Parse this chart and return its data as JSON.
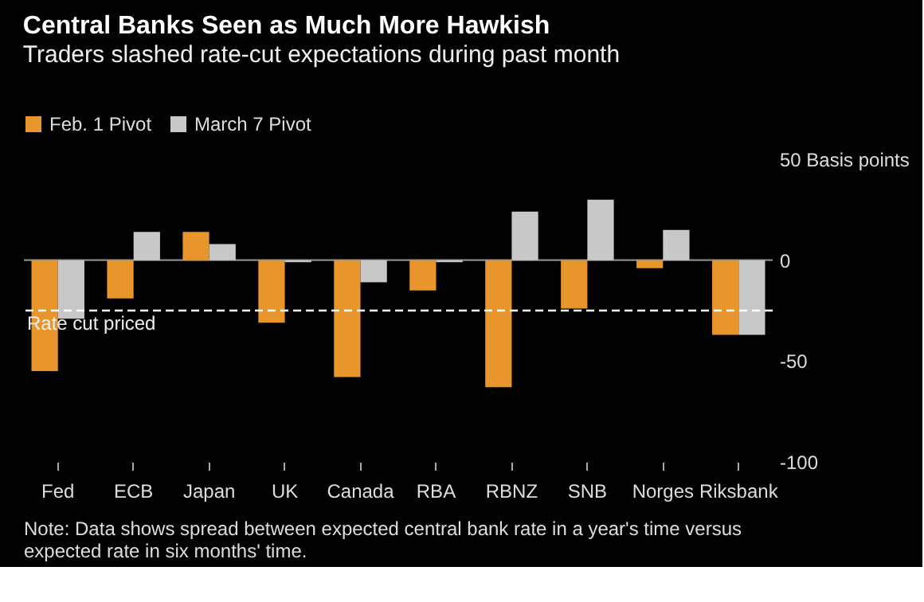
{
  "chart_data": {
    "type": "bar",
    "title": "Central Banks Seen as Much More Hawkish",
    "subtitle": "Traders slashed rate-cut expectations during past month",
    "categories": [
      "Fed",
      "ECB",
      "Japan",
      "UK",
      "Canada",
      "RBA",
      "RBNZ",
      "SNB",
      "Norges",
      "Riksbank"
    ],
    "series": [
      {
        "name": "Feb. 1 Pivot",
        "color": "#e8952c",
        "values": [
          -55,
          -19,
          14,
          -31,
          -58,
          -15,
          -63,
          -24,
          -4,
          -37
        ]
      },
      {
        "name": "March 7 Pivot",
        "color": "#c8c8c8",
        "values": [
          -29,
          14,
          8,
          -1,
          -11,
          -1,
          24,
          30,
          15,
          -37
        ]
      }
    ],
    "ylim": [
      -100,
      50
    ],
    "yticks": [
      {
        "value": 50,
        "label": "50 Basis points"
      },
      0,
      -50,
      -100
    ],
    "ref_lines": [
      {
        "axis": "y",
        "value": -25,
        "label": "Rate cut priced",
        "color": "#ffffff",
        "line_style": "dashed"
      },
      {
        "axis": "y",
        "value": 0,
        "color": "#8a8a8a",
        "line_style": "solid"
      }
    ],
    "legend": "top left",
    "grid": false,
    "annotations": [
      "Note: Data shows spread between expected central bank rate in a year's time versus expected rate in six months' time."
    ]
  }
}
